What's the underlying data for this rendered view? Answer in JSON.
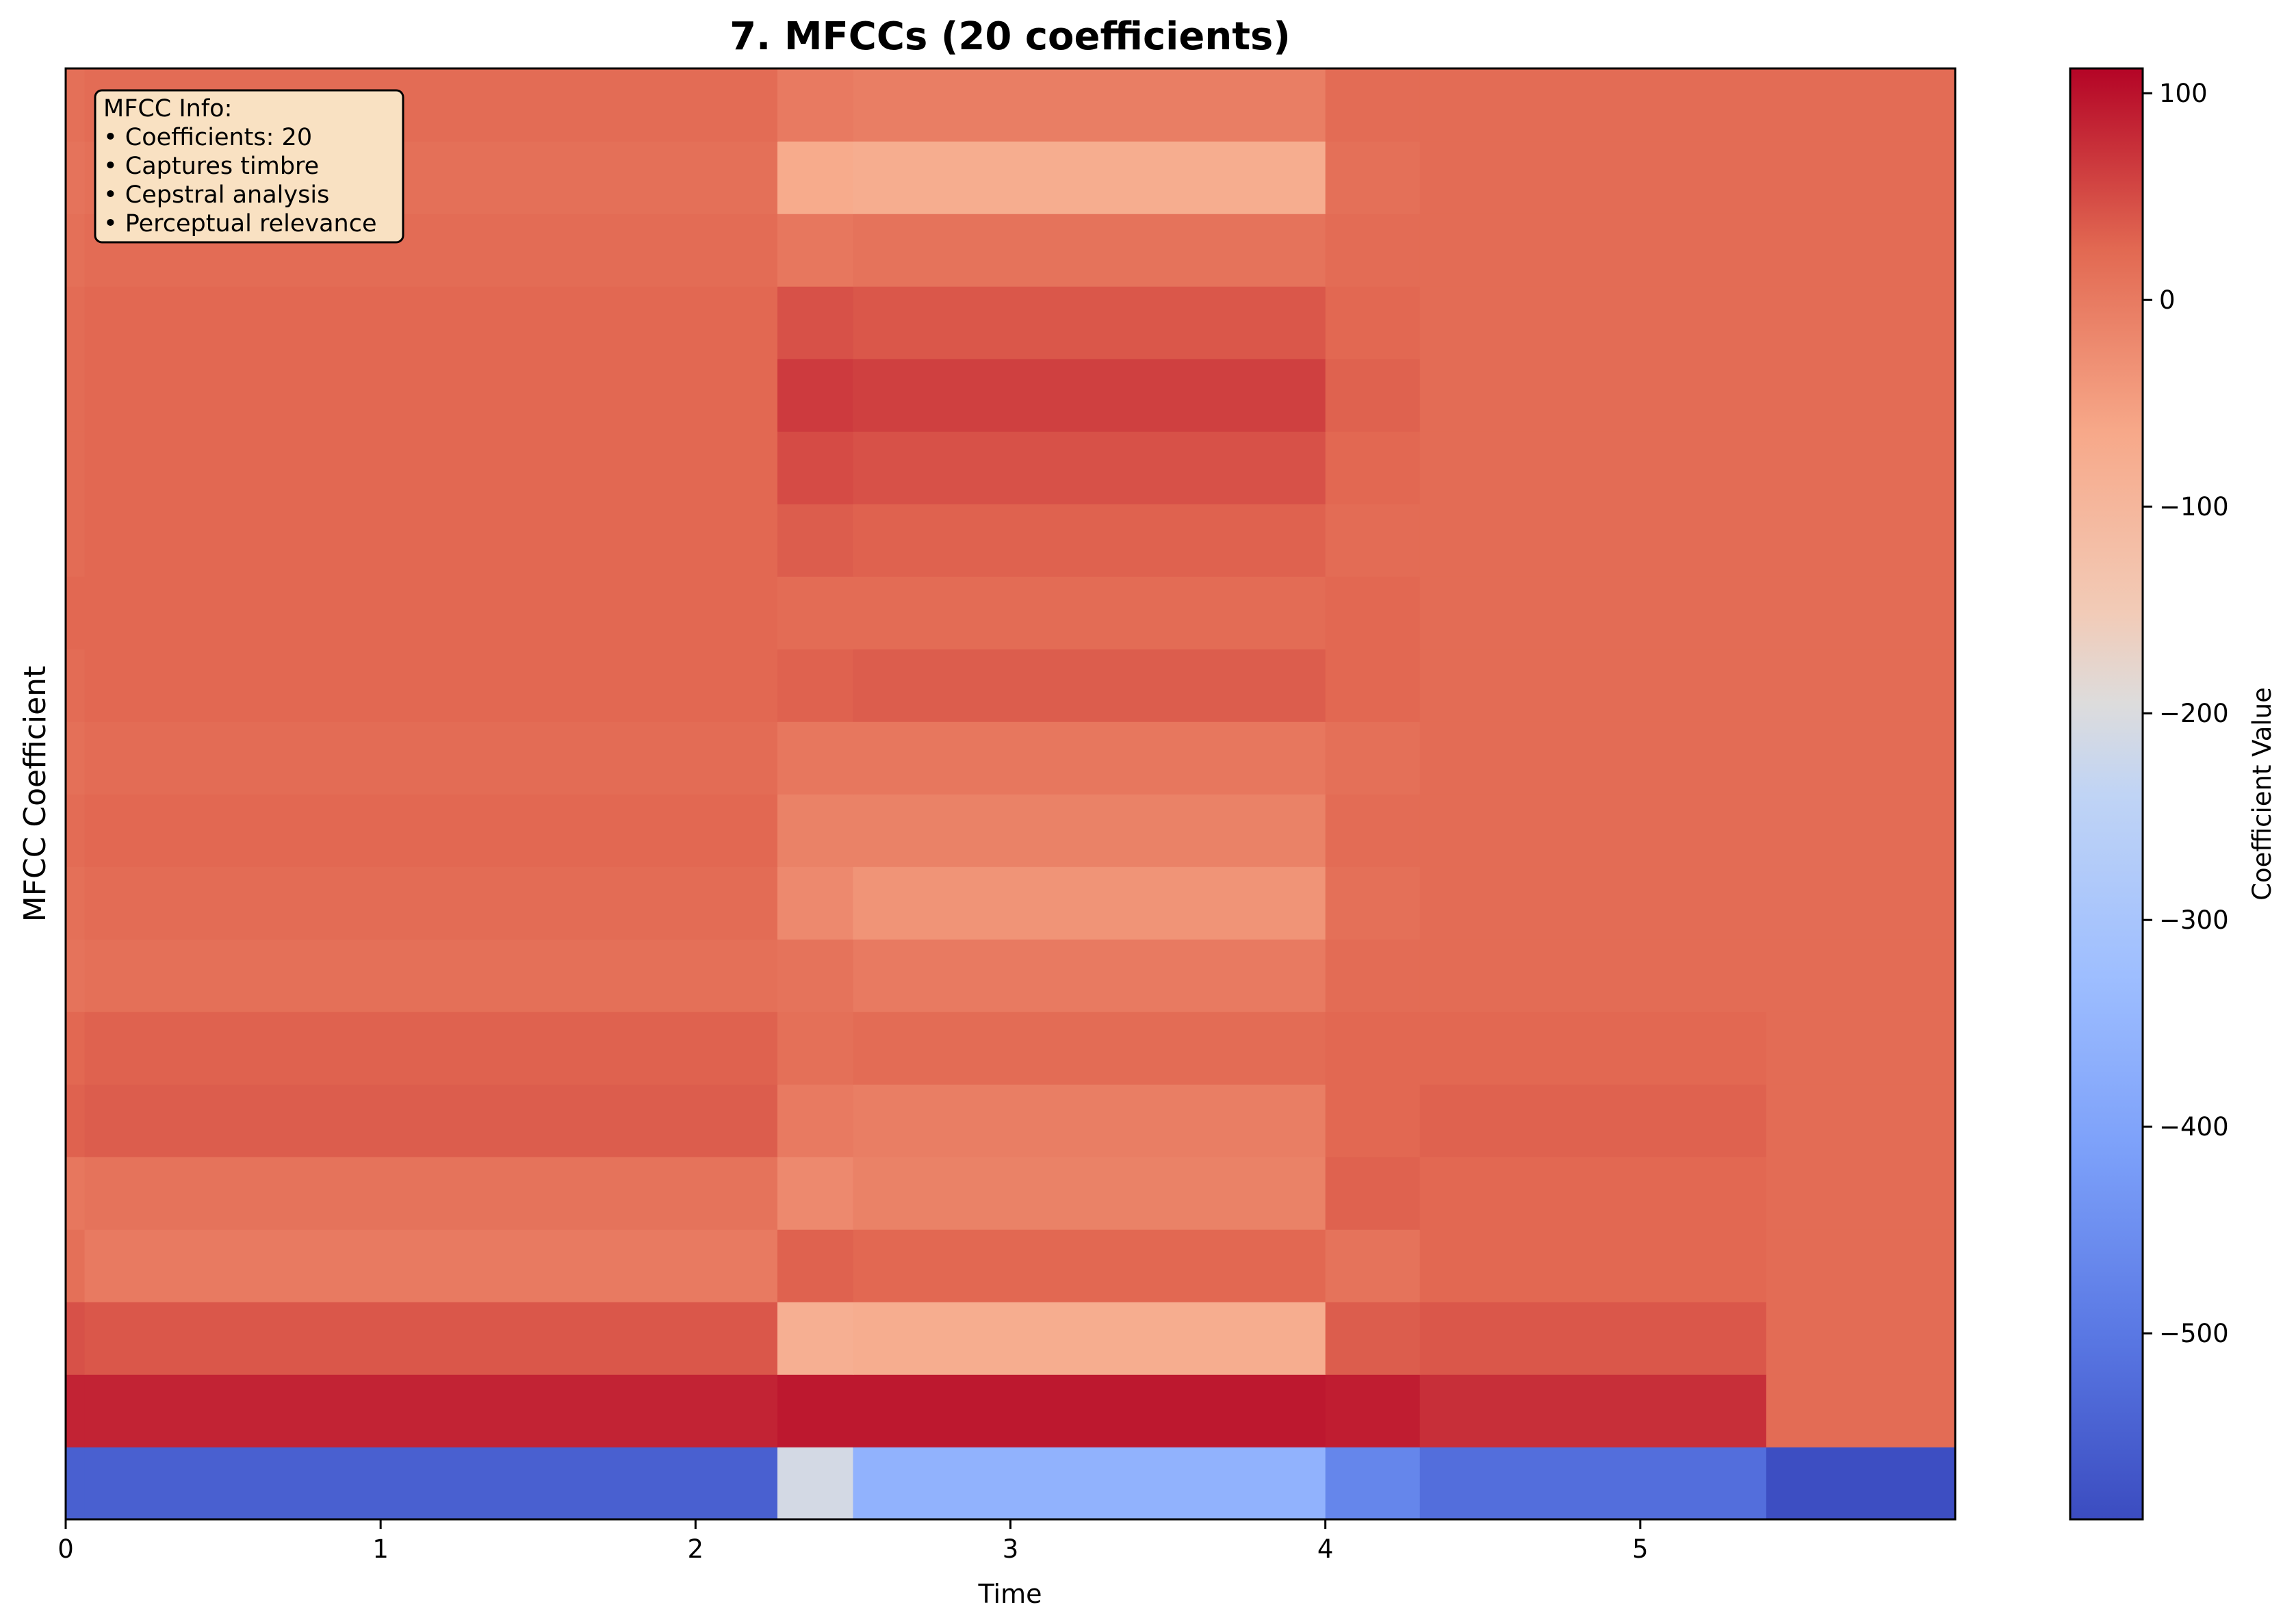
{
  "chart_data": {
    "type": "heatmap",
    "title": "7. MFCCs (20 coefficients)",
    "xlabel": "Time",
    "ylabel": "MFCC Coefficient",
    "colorbar_label": "Coefficient Value",
    "colormap": "coolwarm",
    "xlim": [
      0,
      6.0
    ],
    "color_range": [
      -590,
      112
    ],
    "x_ticks": [
      0,
      1,
      2,
      3,
      4,
      5
    ],
    "x_tick_labels": [
      "0",
      "1",
      "2",
      "3",
      "4",
      "5"
    ],
    "colorbar_ticks": [
      100,
      0,
      -100,
      -200,
      -300,
      -400,
      -500
    ],
    "colorbar_tick_labels": [
      "100",
      "0",
      "−100",
      "−200",
      "−300",
      "−400",
      "−500"
    ],
    "n_coefficients": 20,
    "time_segments": [
      0,
      0.06,
      2.26,
      2.5,
      4.0,
      4.3,
      5.4,
      6.0
    ],
    "rows": [
      [
        -550,
        -550,
        -210,
        -360,
        -470,
        -520,
        -585
      ],
      [
        85,
        85,
        95,
        95,
        90,
        75,
        20
      ],
      [
        45,
        40,
        -80,
        -75,
        35,
        40,
        20
      ],
      [
        15,
        0,
        30,
        25,
        10,
        25,
        20
      ],
      [
        5,
        10,
        -20,
        -10,
        30,
        25,
        20
      ],
      [
        30,
        35,
        0,
        -5,
        25,
        30,
        20
      ],
      [
        25,
        30,
        15,
        20,
        25,
        25,
        20
      ],
      [
        10,
        15,
        10,
        0,
        20,
        20,
        20
      ],
      [
        15,
        20,
        -20,
        -35,
        15,
        20,
        20
      ],
      [
        20,
        25,
        -10,
        -10,
        20,
        20,
        20
      ],
      [
        15,
        20,
        5,
        5,
        15,
        20,
        20
      ],
      [
        20,
        25,
        30,
        35,
        25,
        20,
        20
      ],
      [
        25,
        25,
        20,
        20,
        25,
        20,
        20
      ],
      [
        20,
        25,
        35,
        30,
        20,
        20,
        20
      ],
      [
        20,
        25,
        50,
        45,
        25,
        20,
        20
      ],
      [
        20,
        25,
        65,
        60,
        30,
        20,
        20
      ],
      [
        20,
        25,
        45,
        40,
        25,
        20,
        20
      ],
      [
        15,
        20,
        5,
        10,
        20,
        20,
        20
      ],
      [
        10,
        15,
        -70,
        -75,
        15,
        20,
        20
      ],
      [
        15,
        20,
        0,
        -5,
        20,
        20,
        20
      ]
    ]
  },
  "info_box": {
    "lines": [
      "MFCC Info:",
      "• Coefficients: 20",
      "• Captures timbre",
      "• Cepstral analysis",
      "• Perceptual relevance"
    ]
  },
  "colors": {
    "cold": "#3b4cc0",
    "neutral": "#dddddd",
    "warm": "#b40426",
    "info_box_fill": "#f9e1c2"
  }
}
